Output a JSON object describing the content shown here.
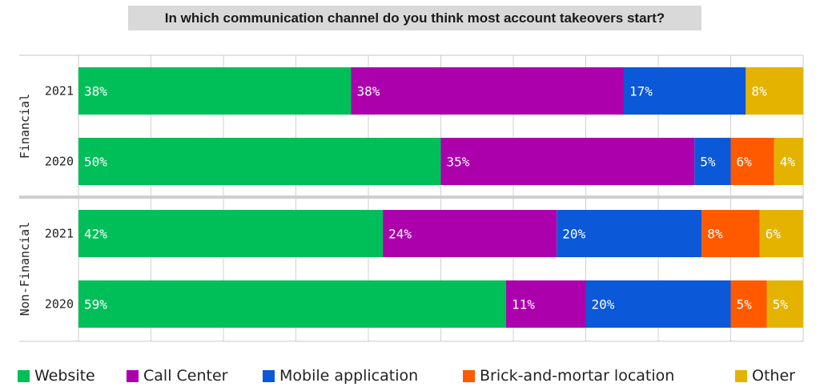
{
  "title": "In which communication channel do you think most account takeovers start?",
  "colors": {
    "Website": "#00bf58",
    "Call Center": "#ad00ad",
    "Mobile application": "#0b58d8",
    "Brick-and-mortar location": "#ff5a00",
    "Other": "#e3b300"
  },
  "chart_data": {
    "type": "bar",
    "orientation": "horizontal",
    "stacked": true,
    "xlim": [
      0,
      100
    ],
    "grid": true,
    "legend_position": "bottom",
    "groups": [
      {
        "name": "Financial",
        "rows": [
          {
            "year": "2021",
            "values": [
              38,
              38,
              17,
              8
            ],
            "labels": [
              "38%",
              "38%",
              "17%",
              "8%"
            ],
            "series": [
              "Website",
              "Call Center",
              "Mobile application",
              "Other"
            ]
          },
          {
            "year": "2020",
            "values": [
              50,
              35,
              5,
              6,
              4
            ],
            "labels": [
              "50%",
              "35%",
              "5%",
              "6%",
              "4%"
            ],
            "series": [
              "Website",
              "Call Center",
              "Mobile application",
              "Brick-and-mortar location",
              "Other"
            ]
          }
        ]
      },
      {
        "name": "Non-Financial",
        "rows": [
          {
            "year": "2021",
            "values": [
              42,
              24,
              20,
              8,
              6
            ],
            "labels": [
              "42%",
              "24%",
              "20%",
              "8%",
              "6%"
            ],
            "series": [
              "Website",
              "Call Center",
              "Mobile application",
              "Brick-and-mortar location",
              "Other"
            ]
          },
          {
            "year": "2020",
            "values": [
              59,
              11,
              20,
              5,
              5
            ],
            "labels": [
              "59%",
              "11%",
              "20%",
              "5%",
              "5%"
            ],
            "series": [
              "Website",
              "Call Center",
              "Mobile application",
              "Brick-and-mortar location",
              "Other"
            ]
          }
        ]
      }
    ],
    "legend": [
      "Website",
      "Call Center",
      "Mobile application",
      "Brick-and-mortar location",
      "Other"
    ]
  }
}
